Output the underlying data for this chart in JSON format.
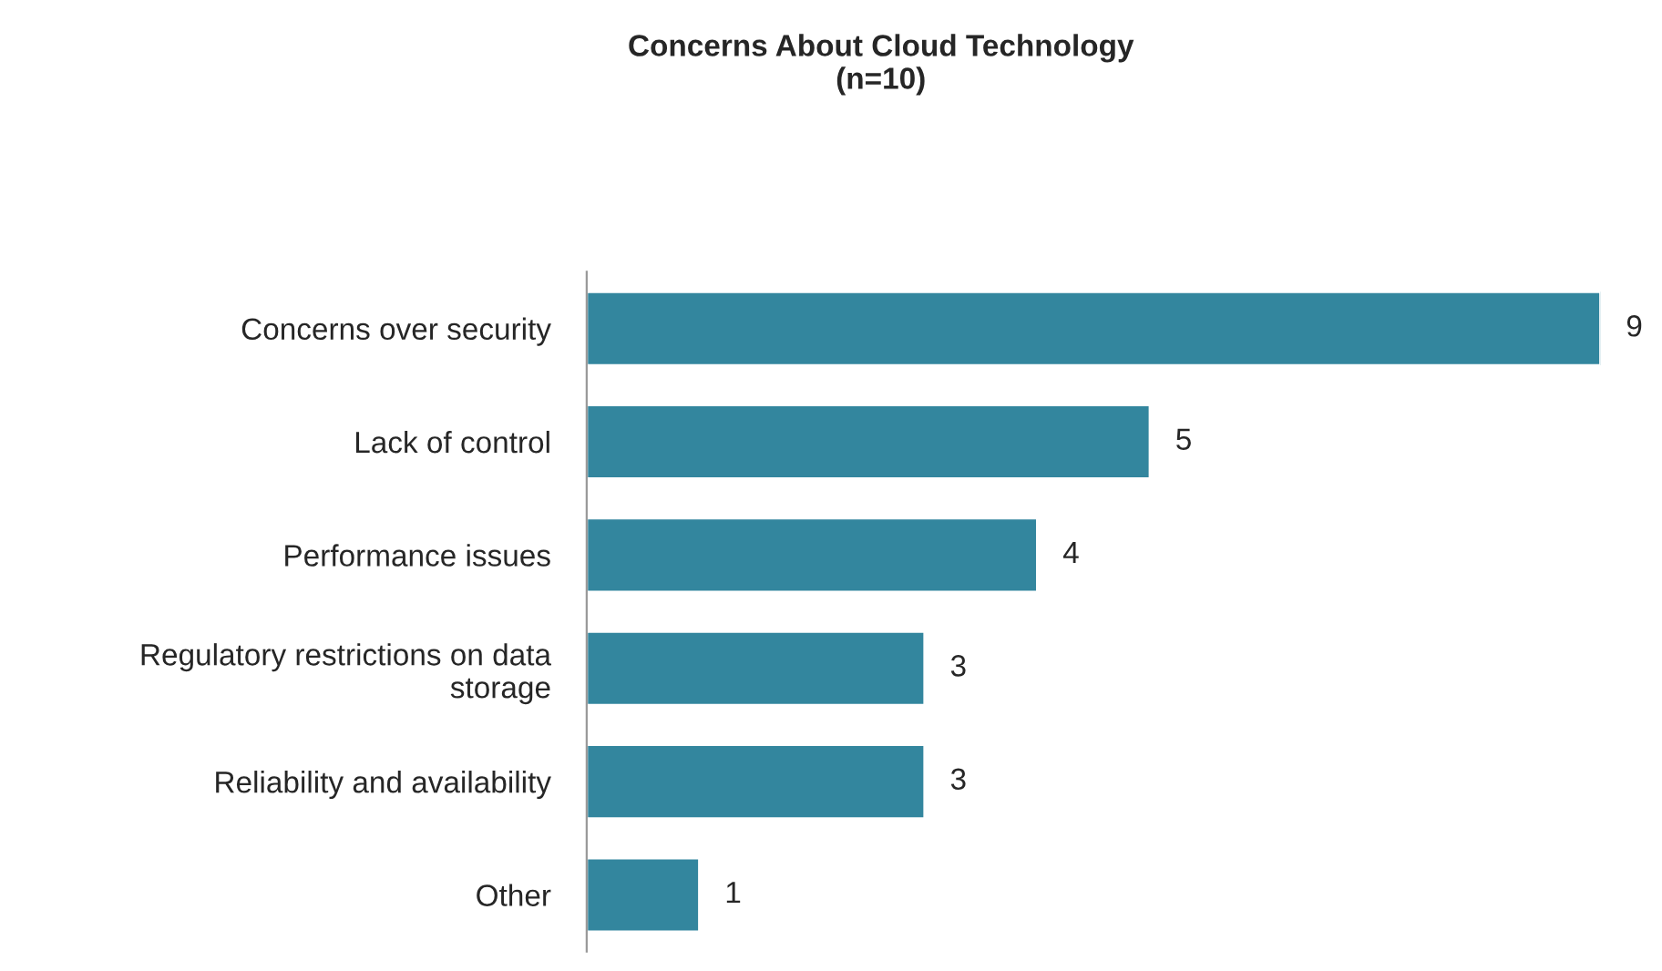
{
  "chart_data": {
    "type": "bar",
    "orientation": "horizontal",
    "title": "Concerns About Cloud Technology\n(n=10)",
    "categories": [
      "Concerns over security",
      "Lack of control",
      "Performance issues",
      "Regulatory restrictions on data\nstorage",
      "Reliability and availability",
      "Other"
    ],
    "values": [
      9,
      5,
      4,
      3,
      3,
      1
    ],
    "color": "#33869e",
    "data_labels": true,
    "tick_labels": "y",
    "grid": false,
    "legend": false
  }
}
